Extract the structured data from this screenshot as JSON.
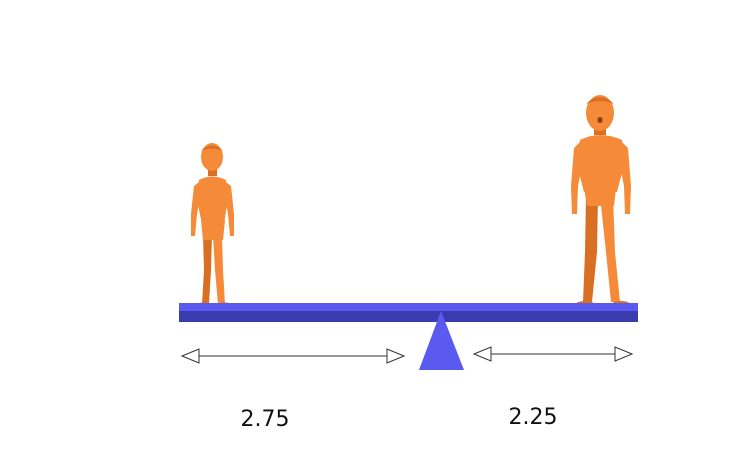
{
  "diagram": {
    "type": "seesaw-balance",
    "left_distance": "2.75",
    "right_distance": "2.25",
    "left_figure": "child",
    "right_figure": "adult"
  },
  "colors": {
    "beam_top": "#5A5AF0",
    "beam_front": "#3B3BB0",
    "fulcrum": "#5A5AF0",
    "figure": "#F58A38",
    "figure_shade": "#D96F22",
    "arrow": "#333333"
  }
}
